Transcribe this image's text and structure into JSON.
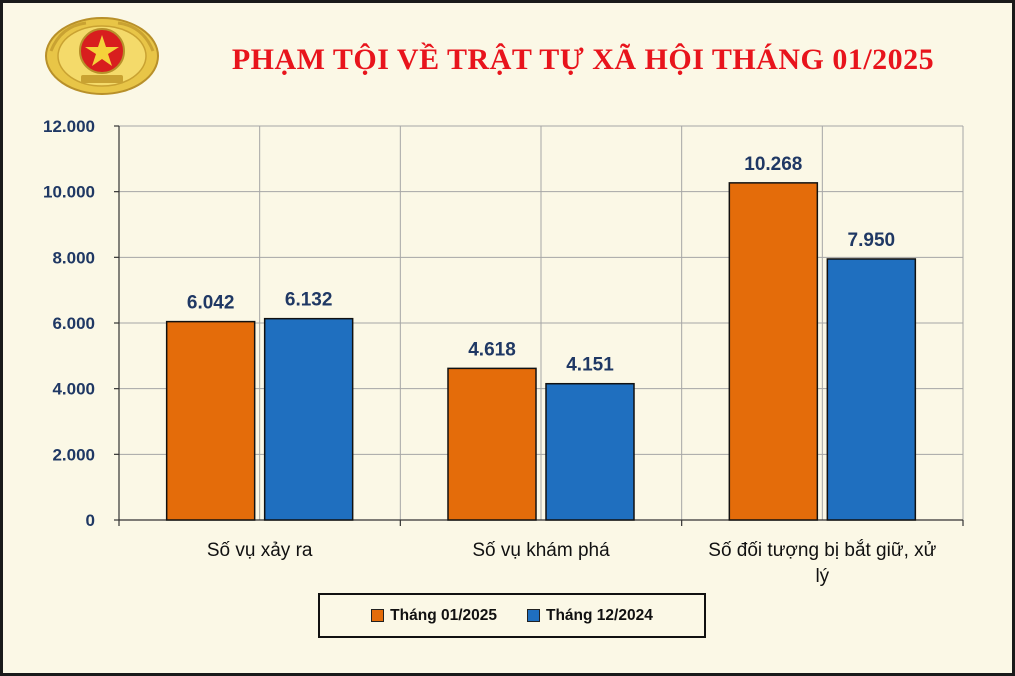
{
  "colors": {
    "frame_bg": "#fbf8e6",
    "title": "#e8141c",
    "axis_text": "#1f3864",
    "series_orange": "#e46c0a",
    "series_blue": "#1f6fbf",
    "grid": "#a6a6a6"
  },
  "header": {
    "title": "PHẠM TỘI VỀ TRẬT  TỰ XÃ HỘI THÁNG 01/2025",
    "emblem_icon": "police-emblem-icon"
  },
  "chart_data": {
    "type": "bar",
    "title": "PHẠM TỘI VỀ TRẬT  TỰ XÃ HỘI THÁNG 01/2025",
    "categories": [
      [
        "Số vụ xảy ra"
      ],
      [
        "Số vụ khám phá"
      ],
      [
        "Số đối tượng bị bắt giữ, xử",
        "lý"
      ]
    ],
    "series": [
      {
        "name": "Tháng 01/2025",
        "color": "#e46c0a",
        "values": [
          6042,
          4618,
          10268
        ],
        "labels": [
          "6.042",
          "4.618",
          "10.268"
        ]
      },
      {
        "name": "Tháng 12/2024",
        "color": "#1f6fbf",
        "values": [
          6132,
          4151,
          7950
        ],
        "labels": [
          "6.132",
          "4.151",
          "7.950"
        ]
      }
    ],
    "ylim": [
      0,
      12000
    ],
    "yticks": [
      0,
      2000,
      4000,
      6000,
      8000,
      10000,
      12000
    ],
    "ytick_labels": [
      "0",
      "2.000",
      "4.000",
      "6.000",
      "8.000",
      "10.000",
      "12.000"
    ],
    "grid": true,
    "legend_position": "bottom"
  }
}
